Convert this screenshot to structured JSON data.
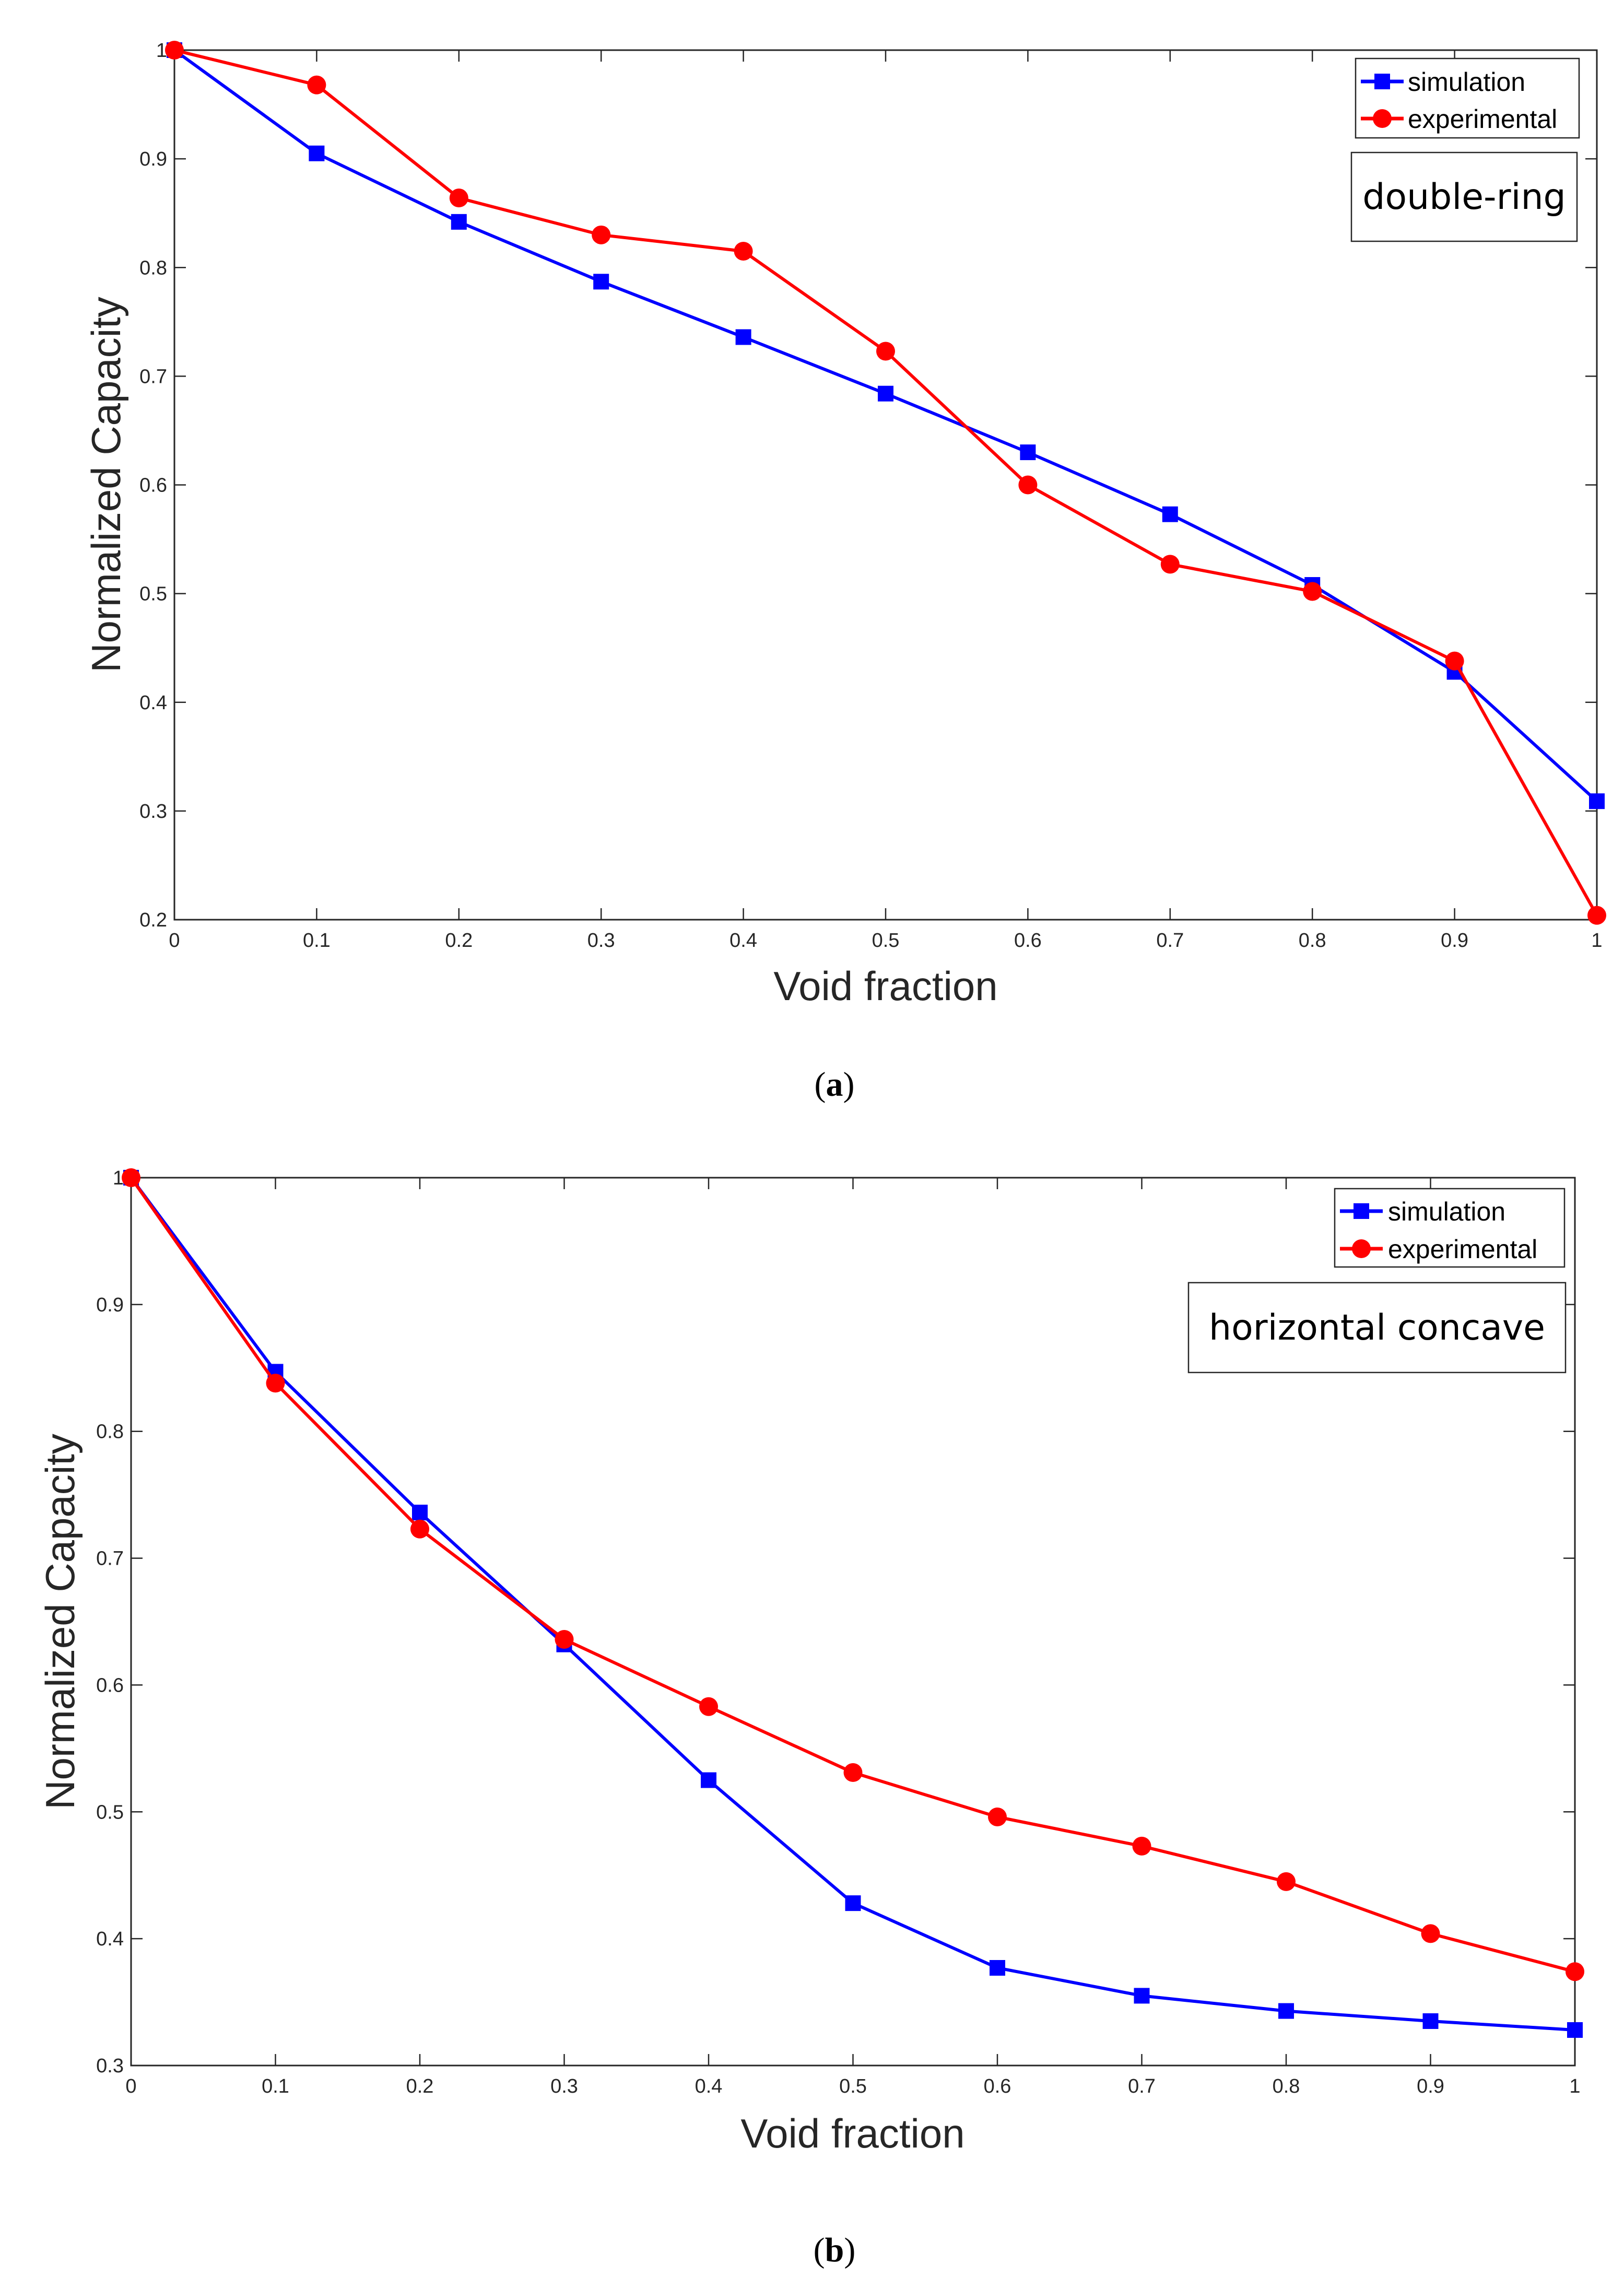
{
  "chart_data": [
    {
      "type": "line",
      "panel_label": "a",
      "xlabel": "Void fraction",
      "ylabel": "Normalized Capacity",
      "xlim": [
        0,
        1
      ],
      "ylim": [
        0.2,
        1
      ],
      "x_ticks": [
        "0",
        "0.1",
        "0.2",
        "0.3",
        "0.4",
        "0.5",
        "0.6",
        "0.7",
        "0.8",
        "0.9",
        "1"
      ],
      "y_ticks": [
        "0.2",
        "0.3",
        "0.4",
        "0.5",
        "0.6",
        "0.7",
        "0.8",
        "0.9",
        "1"
      ],
      "annotation": "double-ring",
      "legend_position": "top-right",
      "x": [
        0,
        0.1,
        0.2,
        0.3,
        0.4,
        0.5,
        0.6,
        0.7,
        0.8,
        0.9,
        1.0
      ],
      "series": [
        {
          "name": "simulation",
          "color": "#0000ff",
          "marker": "square",
          "values": [
            1.0,
            0.905,
            0.842,
            0.787,
            0.736,
            0.684,
            0.63,
            0.573,
            0.508,
            0.428,
            0.309
          ]
        },
        {
          "name": "experimental",
          "color": "#ff0000",
          "marker": "circle",
          "values": [
            1.0,
            0.968,
            0.864,
            0.83,
            0.815,
            0.723,
            0.6,
            0.527,
            0.502,
            0.438,
            0.204
          ]
        }
      ]
    },
    {
      "type": "line",
      "panel_label": "b",
      "xlabel": "Void fraction",
      "ylabel": "Normalized Capacity",
      "xlim": [
        0,
        1
      ],
      "ylim": [
        0.3,
        1
      ],
      "x_ticks": [
        "0",
        "0.1",
        "0.2",
        "0.3",
        "0.4",
        "0.5",
        "0.6",
        "0.7",
        "0.8",
        "0.9",
        "1"
      ],
      "y_ticks": [
        "0.3",
        "0.4",
        "0.5",
        "0.6",
        "0.7",
        "0.8",
        "0.9",
        "1"
      ],
      "annotation": "horizontal concave",
      "legend_position": "top-right",
      "x": [
        0,
        0.1,
        0.2,
        0.3,
        0.4,
        0.5,
        0.6,
        0.7,
        0.8,
        0.9,
        1.0
      ],
      "series": [
        {
          "name": "simulation",
          "color": "#0000ff",
          "marker": "square",
          "values": [
            1.0,
            0.847,
            0.736,
            0.632,
            0.525,
            0.428,
            0.377,
            0.355,
            0.343,
            0.335,
            0.328
          ]
        },
        {
          "name": "experimental",
          "color": "#ff0000",
          "marker": "circle",
          "values": [
            1.0,
            0.838,
            0.723,
            0.636,
            0.583,
            0.531,
            0.496,
            0.473,
            0.445,
            0.404,
            0.374
          ]
        }
      ]
    }
  ]
}
